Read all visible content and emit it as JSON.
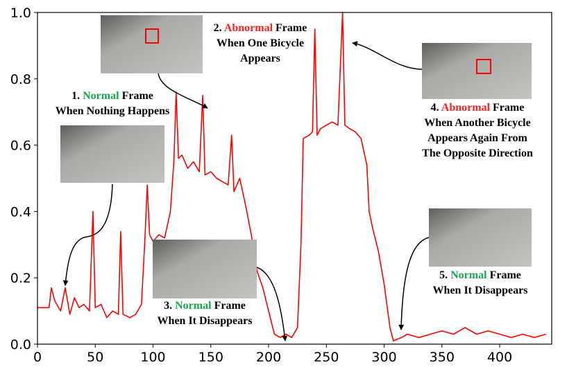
{
  "chart_data": {
    "type": "line",
    "x": [
      0,
      10,
      12,
      15,
      20,
      24,
      28,
      32,
      36,
      40,
      45,
      48,
      50,
      55,
      60,
      65,
      70,
      72,
      74,
      80,
      85,
      90,
      93,
      95,
      97,
      100,
      105,
      110,
      115,
      118,
      120,
      122,
      125,
      130,
      135,
      140,
      143,
      145,
      150,
      155,
      160,
      165,
      168,
      170,
      175,
      180,
      185,
      190,
      195,
      200,
      205,
      210,
      215,
      220,
      225,
      228,
      230,
      235,
      238,
      240,
      242,
      245,
      250,
      255,
      260,
      264,
      266,
      270,
      275,
      280,
      285,
      287,
      290,
      295,
      300,
      305,
      308,
      315,
      320,
      330,
      340,
      350,
      360,
      370,
      380,
      390,
      400,
      410,
      420,
      430,
      440
    ],
    "series": [
      {
        "color": "#ff0000",
        "values": [
          0.11,
          0.11,
          0.17,
          0.13,
          0.1,
          0.17,
          0.09,
          0.14,
          0.11,
          0.12,
          0.1,
          0.4,
          0.11,
          0.12,
          0.08,
          0.1,
          0.09,
          0.34,
          0.09,
          0.08,
          0.09,
          0.12,
          0.32,
          0.48,
          0.33,
          0.31,
          0.33,
          0.32,
          0.4,
          0.55,
          0.76,
          0.56,
          0.57,
          0.53,
          0.55,
          0.52,
          0.75,
          0.51,
          0.52,
          0.5,
          0.49,
          0.48,
          0.63,
          0.46,
          0.5,
          0.42,
          0.33,
          0.22,
          0.17,
          0.1,
          0.03,
          0.02,
          0.03,
          0.02,
          0.05,
          0.3,
          0.62,
          0.63,
          0.64,
          0.95,
          0.63,
          0.65,
          0.66,
          0.67,
          0.66,
          1.0,
          0.66,
          0.65,
          0.64,
          0.62,
          0.54,
          0.4,
          0.35,
          0.28,
          0.18,
          0.05,
          0.01,
          0.02,
          0.03,
          0.02,
          0.03,
          0.04,
          0.03,
          0.05,
          0.03,
          0.04,
          0.03,
          0.02,
          0.03,
          0.02,
          0.03
        ]
      }
    ],
    "xlim": [
      0,
      445
    ],
    "xticks": [
      0,
      50,
      100,
      150,
      200,
      250,
      300,
      350,
      400
    ],
    "ylim": [
      0,
      1.0
    ],
    "yticks": [
      {
        "value": 0,
        "label": "0.0"
      },
      {
        "value": 0.2,
        "label": "0.2"
      },
      {
        "value": 0.4,
        "label": "0.4"
      },
      {
        "value": 0.6,
        "label": "0.6"
      },
      {
        "value": 0.8,
        "label": "0.8"
      },
      {
        "value": 1.0,
        "label": "1.0"
      }
    ],
    "annotations": [
      {
        "number": "1.",
        "status": "Normal",
        "color": "#1aa64a",
        "word": "Frame",
        "lines": [
          "When Nothing Happens"
        ]
      },
      {
        "number": "2.",
        "status": "Abnormal",
        "color": "#ff2020",
        "word": "Frame",
        "lines": [
          "When One Bicycle",
          "Appears"
        ]
      },
      {
        "number": "3.",
        "status": "Normal",
        "color": "#1aa64a",
        "word": "Frame",
        "lines": [
          "When It Disappears"
        ]
      },
      {
        "number": "4.",
        "status": "Abnormal",
        "color": "#ff2020",
        "word": "Frame",
        "lines": [
          "When Another Bicycle",
          "Appears Again From",
          "The Opposite Direction"
        ]
      },
      {
        "number": "5.",
        "status": "Normal",
        "color": "#1aa64a",
        "word": "Frame",
        "lines": [
          "When It Disappears"
        ]
      }
    ]
  }
}
